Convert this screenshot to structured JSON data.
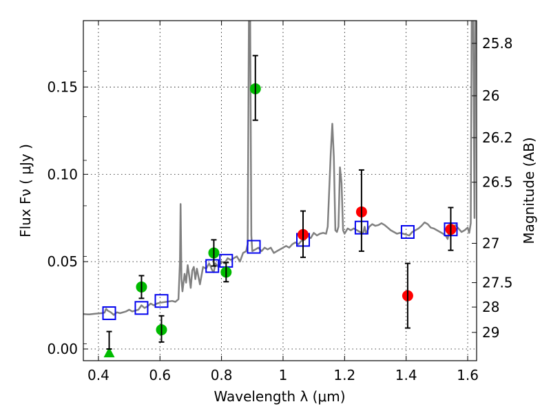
{
  "chart_data": {
    "type": "scatter",
    "title": "",
    "xlabel": "Wavelength  λ (μm)",
    "ylabel": "Flux  Fν  ( μJy )",
    "ylabel_right": "Magnitude (AB)",
    "xlim": [
      0.351,
      1.629
    ],
    "ylim": [
      -0.0067,
      0.188
    ],
    "grid": true,
    "legend": "none",
    "x_ticks": [
      {
        "value": 0.4,
        "label": "0.4"
      },
      {
        "value": 0.6,
        "label": "0.6"
      },
      {
        "value": 0.8,
        "label": "0.8"
      },
      {
        "value": 1.0,
        "label": "1"
      },
      {
        "value": 1.2,
        "label": "1.2"
      },
      {
        "value": 1.4,
        "label": "1.4"
      },
      {
        "value": 1.6,
        "label": "1.6"
      }
    ],
    "y_ticks": [
      {
        "value": 0.0,
        "label": "0.00"
      },
      {
        "value": 0.05,
        "label": "0.05"
      },
      {
        "value": 0.1,
        "label": "0.10"
      },
      {
        "value": 0.15,
        "label": "0.15"
      }
    ],
    "right_ticks": [
      {
        "flux": 0.175,
        "label": "25.8"
      },
      {
        "flux": 0.145,
        "label": "26"
      },
      {
        "flux": 0.121,
        "label": "26.2"
      },
      {
        "flux": 0.0955,
        "label": "26.5"
      },
      {
        "flux": 0.0605,
        "label": "27"
      },
      {
        "flux": 0.038,
        "label": "27.5"
      },
      {
        "flux": 0.024,
        "label": "28"
      },
      {
        "flux": 0.0095,
        "label": "29"
      }
    ],
    "right_minor_ticks": [
      0.159,
      0.133,
      0.108,
      0.082,
      0.053,
      0.003
    ],
    "colors": {
      "spectrum": "#808080",
      "model_boxes": "#0000ee",
      "optical_points": "#00bb00",
      "nir_points": "#ff0000",
      "errorbars": "#000000"
    },
    "series": [
      {
        "name": "model-spectrum",
        "kind": "line",
        "points": [
          [
            0.351,
            0.02
          ],
          [
            0.37,
            0.0198
          ],
          [
            0.39,
            0.0202
          ],
          [
            0.41,
            0.0205
          ],
          [
            0.42,
            0.0208
          ],
          [
            0.425,
            0.023
          ],
          [
            0.43,
            0.022
          ],
          [
            0.44,
            0.021
          ],
          [
            0.45,
            0.0195
          ],
          [
            0.46,
            0.021
          ],
          [
            0.47,
            0.0205
          ],
          [
            0.49,
            0.0215
          ],
          [
            0.5,
            0.0225
          ],
          [
            0.51,
            0.0215
          ],
          [
            0.52,
            0.022
          ],
          [
            0.53,
            0.0225
          ],
          [
            0.54,
            0.025
          ],
          [
            0.55,
            0.0235
          ],
          [
            0.56,
            0.0245
          ],
          [
            0.57,
            0.026
          ],
          [
            0.58,
            0.025
          ],
          [
            0.59,
            0.026
          ],
          [
            0.6,
            0.0265
          ],
          [
            0.62,
            0.027
          ],
          [
            0.64,
            0.0275
          ],
          [
            0.65,
            0.027
          ],
          [
            0.66,
            0.0285
          ],
          [
            0.665,
            0.05
          ],
          [
            0.667,
            0.083
          ],
          [
            0.67,
            0.04
          ],
          [
            0.673,
            0.033
          ],
          [
            0.68,
            0.043
          ],
          [
            0.685,
            0.038
          ],
          [
            0.69,
            0.048
          ],
          [
            0.695,
            0.042
          ],
          [
            0.7,
            0.035
          ],
          [
            0.705,
            0.045
          ],
          [
            0.71,
            0.047
          ],
          [
            0.715,
            0.04
          ],
          [
            0.72,
            0.046
          ],
          [
            0.73,
            0.037
          ],
          [
            0.74,
            0.047
          ],
          [
            0.75,
            0.046
          ],
          [
            0.76,
            0.049
          ],
          [
            0.77,
            0.045
          ],
          [
            0.775,
            0.044
          ],
          [
            0.78,
            0.049
          ],
          [
            0.79,
            0.047
          ],
          [
            0.8,
            0.05
          ],
          [
            0.81,
            0.049
          ],
          [
            0.82,
            0.052
          ],
          [
            0.83,
            0.051
          ],
          [
            0.84,
            0.052
          ],
          [
            0.85,
            0.053
          ],
          [
            0.86,
            0.05
          ],
          [
            0.87,
            0.055
          ],
          [
            0.88,
            0.056
          ],
          [
            0.885,
            0.06
          ],
          [
            0.889,
            0.19
          ],
          [
            0.893,
            0.19
          ],
          [
            0.897,
            0.065
          ],
          [
            0.9,
            0.056
          ],
          [
            0.91,
            0.057
          ],
          [
            0.92,
            0.058
          ],
          [
            0.93,
            0.056
          ],
          [
            0.94,
            0.058
          ],
          [
            0.95,
            0.057
          ],
          [
            0.96,
            0.058
          ],
          [
            0.97,
            0.055
          ],
          [
            0.98,
            0.056
          ],
          [
            0.99,
            0.057
          ],
          [
            1.0,
            0.058
          ],
          [
            1.01,
            0.059
          ],
          [
            1.02,
            0.058
          ],
          [
            1.03,
            0.06
          ],
          [
            1.04,
            0.061
          ],
          [
            1.05,
            0.06
          ],
          [
            1.06,
            0.062
          ],
          [
            1.07,
            0.0625
          ],
          [
            1.08,
            0.0645
          ],
          [
            1.09,
            0.0635
          ],
          [
            1.1,
            0.0665
          ],
          [
            1.11,
            0.065
          ],
          [
            1.12,
            0.066
          ],
          [
            1.13,
            0.0665
          ],
          [
            1.14,
            0.066
          ],
          [
            1.145,
            0.07
          ],
          [
            1.155,
            0.112
          ],
          [
            1.16,
            0.129
          ],
          [
            1.165,
            0.11
          ],
          [
            1.17,
            0.068
          ],
          [
            1.175,
            0.067
          ],
          [
            1.18,
            0.07
          ],
          [
            1.185,
            0.104
          ],
          [
            1.19,
            0.095
          ],
          [
            1.195,
            0.068
          ],
          [
            1.2,
            0.066
          ],
          [
            1.21,
            0.069
          ],
          [
            1.22,
            0.068
          ],
          [
            1.23,
            0.069
          ],
          [
            1.24,
            0.068
          ],
          [
            1.25,
            0.067
          ],
          [
            1.26,
            0.066
          ],
          [
            1.265,
            0.07
          ],
          [
            1.27,
            0.066
          ],
          [
            1.28,
            0.07
          ],
          [
            1.29,
            0.0715
          ],
          [
            1.3,
            0.0705
          ],
          [
            1.31,
            0.071
          ],
          [
            1.32,
            0.072
          ],
          [
            1.33,
            0.071
          ],
          [
            1.34,
            0.0695
          ],
          [
            1.35,
            0.068
          ],
          [
            1.36,
            0.067
          ],
          [
            1.37,
            0.066
          ],
          [
            1.38,
            0.0665
          ],
          [
            1.39,
            0.066
          ],
          [
            1.4,
            0.0655
          ],
          [
            1.41,
            0.065
          ],
          [
            1.42,
            0.067
          ],
          [
            1.43,
            0.068
          ],
          [
            1.44,
            0.069
          ],
          [
            1.45,
            0.0705
          ],
          [
            1.46,
            0.0725
          ],
          [
            1.47,
            0.0715
          ],
          [
            1.48,
            0.0695
          ],
          [
            1.49,
            0.069
          ],
          [
            1.5,
            0.068
          ],
          [
            1.51,
            0.067
          ],
          [
            1.52,
            0.066
          ],
          [
            1.53,
            0.0645
          ],
          [
            1.535,
            0.063
          ],
          [
            1.54,
            0.068
          ],
          [
            1.55,
            0.0685
          ],
          [
            1.56,
            0.071
          ],
          [
            1.57,
            0.069
          ],
          [
            1.58,
            0.067
          ],
          [
            1.59,
            0.068
          ],
          [
            1.6,
            0.0695
          ],
          [
            1.605,
            0.0665
          ],
          [
            1.61,
            0.072
          ],
          [
            1.613,
            0.19
          ],
          [
            1.618,
            0.19
          ],
          [
            1.622,
            0.075
          ],
          [
            1.625,
            0.19
          ],
          [
            1.629,
            0.19
          ]
        ]
      },
      {
        "name": "model-photometry",
        "kind": "open-square",
        "x": [
          0.435,
          0.54,
          0.605,
          0.77,
          0.815,
          0.905,
          1.065,
          1.255,
          1.405,
          1.545
        ],
        "y": [
          0.0205,
          0.0235,
          0.0275,
          0.0475,
          0.0505,
          0.0585,
          0.0625,
          0.0695,
          0.067,
          0.0685
        ]
      },
      {
        "name": "optical-photometry",
        "kind": "filled-circle",
        "x": [
          0.54,
          0.605,
          0.775,
          0.815,
          0.91
        ],
        "y": [
          0.0355,
          0.011,
          0.055,
          0.044,
          0.149
        ],
        "yerr_low": [
          0.029,
          0.004,
          0.0475,
          0.0385,
          0.131
        ],
        "yerr_high": [
          0.042,
          0.019,
          0.0625,
          0.0495,
          0.168
        ]
      },
      {
        "name": "upper-limit",
        "kind": "filled-triangle",
        "x": [
          0.435
        ],
        "y": [
          -0.002
        ],
        "yerr_low": [
          0.0
        ],
        "yerr_high": [
          0.01
        ]
      },
      {
        "name": "nir-photometry",
        "kind": "filled-circle",
        "x": [
          1.065,
          1.255,
          1.405,
          1.545
        ],
        "y": [
          0.0655,
          0.0785,
          0.0305,
          0.0685
        ],
        "yerr_low": [
          0.0525,
          0.056,
          0.012,
          0.0565
        ],
        "yerr_high": [
          0.079,
          0.1025,
          0.049,
          0.081
        ]
      }
    ]
  }
}
